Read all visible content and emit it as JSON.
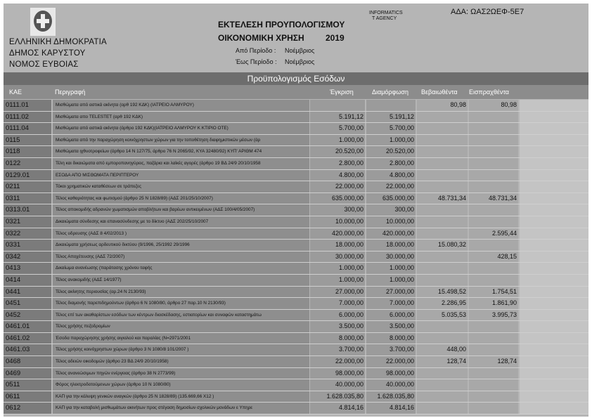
{
  "header": {
    "org_lines": [
      "ΕΛΛΗΝΙΚΗ ΔΗΜΟΚΡΑΤΙΑ",
      "ΔΗΜΟΣ ΚΑΡΥΣΤΟΥ",
      "ΝΟΜΟΣ ΕΥΒΟΙΑΣ"
    ],
    "title": "ΕΚΤΕΛΕΣΗ ΠΡΟΥΠΟΛΟΓΙΣΜΟΥ",
    "fiscal_year_label": "ΟΙΚΟΝΟΜΙΚΗ ΧΡΗΣΗ",
    "fiscal_year": "2019",
    "from_period_label": "Από Περίοδο :",
    "from_period": "Νοέμβριος",
    "to_period_label": "Έως Περίοδο :",
    "to_period": "Νοέμβριος",
    "ada": "ΑΔΑ: ΩΑΣ2ΩΕΦ-5Ε7",
    "stamp_lines": [
      "INFORMATICS",
      "T AGENCY"
    ]
  },
  "section_title": "Προϋπολογισμός Εσόδων",
  "columns": [
    "ΚΑΕ",
    "Περιγραφή",
    "Έγκριση",
    "Διαμόρφωση",
    "Βεβαιωθέντα",
    "Εισπραχθέντα"
  ],
  "rows": [
    {
      "kae": "0111.01",
      "desc": "Μισθώματα από αστικά ακίνητα (αρθ 192 ΚΔΚ)  (ΙΑΤΡΕΙΟ ΑΛΜΥΡΟΥ)",
      "approved": "",
      "modified": "",
      "certified": "80,98",
      "collected": "80,98"
    },
    {
      "kae": "0111.02",
      "desc": "Μισθώματα απο TELESTET (αρθ 192 ΚΔΚ)",
      "approved": "5.191,12",
      "modified": "5.191,12",
      "certified": "",
      "collected": ""
    },
    {
      "kae": "0111.04",
      "desc": "Μισθώματα από αστικά ακίνητα (άρθρο 192 ΚΔΚ)(ΙΑΤΡΕΙΟ ΑΛΜΥΡΟΥ Κ ΚΤΙΡΙΟ ΟΤΕ)",
      "approved": "5.700,00",
      "modified": "5.700,00",
      "certified": "",
      "collected": ""
    },
    {
      "kae": "0115",
      "desc": "Μισθώματα από την παραχώρηση κοινόχρηστων χώρων για την τοποθέτηση διαφημιστικών μέσων (άρ",
      "approved": "1.000,00",
      "modified": "1.000,00",
      "certified": "",
      "collected": ""
    },
    {
      "kae": "0118",
      "desc": "Μισθώματα ιχθυοτροφείων (άρθρο 14 Ν 127/75, άρθρο 76 Ν 2065/92, ΚΥΑ 32480/92) ΚΥΠ' ΑΡΙΘΜ 474",
      "approved": "20.520,00",
      "modified": "20.520,00",
      "certified": "",
      "collected": ""
    },
    {
      "kae": "0122",
      "desc": "Τέλη και δικαιώματα από εμποροπανηγύρεις, παζάρια και λαϊκές αγορές (άρθρο 19 ΒΔ 24/9 20/10/1958",
      "approved": "2.800,00",
      "modified": "2.800,00",
      "certified": "",
      "collected": ""
    },
    {
      "kae": "0129.01",
      "desc": "ΕΣΟΔΑ ΑΠΟ ΜΙΣΘΩΜΑΤΑ ΠΕΡΙΠΤΕΡΟΥ",
      "approved": "4.800,00",
      "modified": "4.800,00",
      "certified": "",
      "collected": ""
    },
    {
      "kae": "0211",
      "desc": "Τόκοι χρηματικών καταθέσεων σε τράπεζες",
      "approved": "22.000,00",
      "modified": "22.000,00",
      "certified": "",
      "collected": ""
    },
    {
      "kae": "0311",
      "desc": "Τέλος καθαριότητας και φωτισμού (άρθρο 25 Ν 1828/89) (ΑΔΣ 201/25/10/2007)",
      "approved": "635.000,00",
      "modified": "635.000,00",
      "certified": "48.731,34",
      "collected": "48.731,34"
    },
    {
      "kae": "0313.01",
      "desc": "Τέλος αποκομιδής αδρανών χωματισμών αποβλήτων και βαρέων αντικειμένων (ΑΔΣ 100/4/05/2007)",
      "approved": "300,00",
      "modified": "300,00",
      "certified": "",
      "collected": ""
    },
    {
      "kae": "0321",
      "desc": "Δικαιώματα σύνδεσης και επανασύνδεσης με το δίκτυο (ΑΔΣ 202/25/10/2007",
      "approved": "10.000,00",
      "modified": "10.000,00",
      "certified": "",
      "collected": ""
    },
    {
      "kae": "0322",
      "desc": "Τέλος υδρευσης (ΑΔΣ 8  4/02/2013 )",
      "approved": "420.000,00",
      "modified": "420.000,00",
      "certified": "",
      "collected": "2.595,44"
    },
    {
      "kae": "0331",
      "desc": "Δικαιώματα χρήσεως αρδευτικού  δικτύου (9/1996, 25/1992 29/1996",
      "approved": "18.000,00",
      "modified": "18.000,00",
      "certified": "15.080,32",
      "collected": ""
    },
    {
      "kae": "0342",
      "desc": "Τέλος Αποχέτευσης (ΑΔΣ 72/2007)",
      "approved": "30.000,00",
      "modified": "30.000,00",
      "certified": "",
      "collected": "428,15"
    },
    {
      "kae": "0413",
      "desc": "Δικαίωμα ανανέωσης (παράτασης χρόνου ταφής",
      "approved": "1.000,00",
      "modified": "1.000,00",
      "certified": "",
      "collected": ""
    },
    {
      "kae": "0414",
      "desc": "Τέλος ανακομιδής (ΑΔΣ 14/1977)",
      "approved": "1.000,00",
      "modified": "1.000,00",
      "certified": "",
      "collected": ""
    },
    {
      "kae": "0441",
      "desc": "Τέλος ακίνητης περιουσίας (αρ.24 Ν 2130/93)",
      "approved": "27.000,00",
      "modified": "27.000,00",
      "certified": "15.498,52",
      "collected": "1.754,51"
    },
    {
      "kae": "0451",
      "desc": "Τέλος διαμονής παρεπιδημούντων (άρθρο 6 Ν 1080/80, άρθρο 27 παρ.10 Ν 2130/93)",
      "approved": "7.000,00",
      "modified": "7.000,00",
      "certified": "2.286,95",
      "collected": "1.861,90"
    },
    {
      "kae": "0452",
      "desc": "Τέλος επί των ακαθαρίστων εσόδων των κέντρων διασκέδασης, εστιατορίων και συναφών καταστημάτω",
      "approved": "6.000,00",
      "modified": "6.000,00",
      "certified": "5.035,53",
      "collected": "3.995,73"
    },
    {
      "kae": "0461.01",
      "desc": "Τέλος χρήσης πεζοδρομίων",
      "approved": "3.500,00",
      "modified": "3.500,00",
      "certified": "",
      "collected": ""
    },
    {
      "kae": "0461.02",
      "desc": "Έσοδα παραχώρησης χρήσης αιγιαλού και παραλίας (Ν=2971/2001",
      "approved": "8.000,00",
      "modified": "8.000,00",
      "certified": "",
      "collected": ""
    },
    {
      "kae": "0461.03",
      "desc": "Τέλος χρήσης κοινόχρηστων χώρων (άρθρο 3 Ν 1080/8 101/2007 )",
      "approved": "3.700,00",
      "modified": "3.700,00",
      "certified": "448,00",
      "collected": ""
    },
    {
      "kae": "0468",
      "desc": "Τέλος αδειών οικοδομών (άρθρο 23 ΒΔ 24/9 20/10/1958)",
      "approved": "22.000,00",
      "modified": "22.000,00",
      "certified": "128,74",
      "collected": "128,74"
    },
    {
      "kae": "0469",
      "desc": "Τέλος ανανεώσιμων πηγών ενέργειας (άρθρο 38 Ν 2773/99)",
      "approved": "98.000,00",
      "modified": "98.000,00",
      "certified": "",
      "collected": ""
    },
    {
      "kae": "0511",
      "desc": "Φόρος ηλεκτροδοτούμενων χώρων (άρθρο 10 Ν 1080/80)",
      "approved": "40.000,00",
      "modified": "40.000,00",
      "certified": "",
      "collected": ""
    },
    {
      "kae": "0611",
      "desc": "ΚΑΠ για την κάλυψη γενικών αναγκών (άρθρο 25 Ν 1828/89) (135.669,66 Χ12 )",
      "approved": "1.628.035,80",
      "modified": "1.628.035,80",
      "certified": "",
      "collected": ""
    },
    {
      "kae": "0612",
      "desc": "ΚΑΠ για την καταβολή μισθωμάτων ακινήτων προς στέγαση  δημοσίων  σχολικών μονάδων ε Υπηρε",
      "approved": "4.814,16",
      "modified": "4.814,16",
      "certified": "",
      "collected": ""
    }
  ]
}
